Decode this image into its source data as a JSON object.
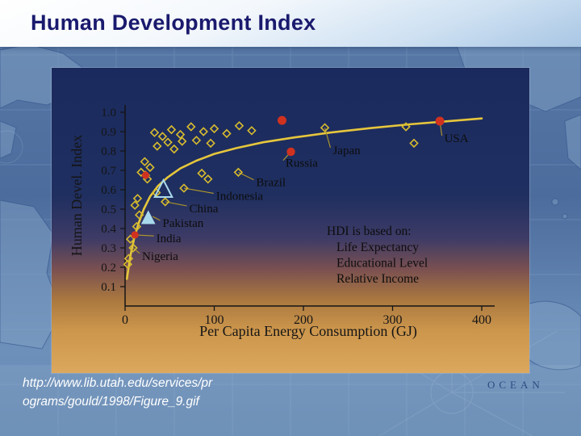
{
  "slide": {
    "title": "Human Development Index",
    "source_lines": [
      "http://www.lib.utah.edu/services/pr",
      "ograms/gould/1998/Figure_9.gif"
    ],
    "map_label": "OCEAN"
  },
  "chart_data": {
    "type": "scatter",
    "xlabel": "Per Capita Energy Consumption (GJ)",
    "ylabel": "Human Devel. Index",
    "xlim": [
      0,
      415
    ],
    "ylim": [
      0,
      1.0
    ],
    "x_ticks": [
      0,
      100,
      200,
      300,
      400
    ],
    "y_ticks": [
      0.1,
      0.2,
      0.3,
      0.4,
      0.5,
      0.6,
      0.7,
      0.8,
      0.9,
      1.0
    ],
    "grid": false,
    "legend": "none",
    "annotation": {
      "title": "HDI is based on:",
      "items": [
        "Life Expectancy",
        "Educational Level",
        "Relative Income"
      ]
    },
    "labeled_points": [
      {
        "label": "USA",
        "point": [
          353,
          0.954
        ],
        "label_at": [
          358,
          0.862
        ]
      },
      {
        "label": "Japan",
        "point": [
          224,
          0.92
        ],
        "label_at": [
          233,
          0.8
        ]
      },
      {
        "label": "Russia",
        "point": [
          186,
          0.796
        ],
        "label_at": [
          180,
          0.735
        ]
      },
      {
        "label": "Brazil",
        "point": [
          127,
          0.69
        ],
        "label_at": [
          147,
          0.635
        ]
      },
      {
        "label": "Indonesia",
        "point": [
          66,
          0.608
        ],
        "label_at": [
          102,
          0.565
        ]
      },
      {
        "label": "China",
        "point": [
          45,
          0.538
        ],
        "label_at": [
          72,
          0.5
        ]
      },
      {
        "label": "Pakistan",
        "point": [
          31,
          0.462
        ],
        "label_at": [
          42,
          0.425
        ]
      },
      {
        "label": "India",
        "point": [
          11,
          0.367
        ],
        "label_at": [
          35,
          0.345
        ]
      },
      {
        "label": "Nigeria",
        "point": [
          9,
          0.3
        ],
        "label_at": [
          19,
          0.255
        ]
      }
    ],
    "diamond_points": [
      [
        33,
        0.895
      ],
      [
        42,
        0.875
      ],
      [
        52,
        0.91
      ],
      [
        62,
        0.885
      ],
      [
        74,
        0.925
      ],
      [
        88,
        0.9
      ],
      [
        100,
        0.915
      ],
      [
        114,
        0.89
      ],
      [
        128,
        0.93
      ],
      [
        142,
        0.905
      ],
      [
        48,
        0.845
      ],
      [
        64,
        0.85
      ],
      [
        80,
        0.855
      ],
      [
        96,
        0.84
      ],
      [
        36,
        0.825
      ],
      [
        55,
        0.81
      ],
      [
        224,
        0.92
      ],
      [
        324,
        0.84
      ],
      [
        315,
        0.925
      ],
      [
        22,
        0.745
      ],
      [
        28,
        0.715
      ],
      [
        18,
        0.69
      ],
      [
        25,
        0.655
      ],
      [
        86,
        0.685
      ],
      [
        93,
        0.655
      ],
      [
        66,
        0.608
      ],
      [
        45,
        0.538
      ],
      [
        35,
        0.585
      ],
      [
        127,
        0.69
      ],
      [
        23,
        0.675
      ],
      [
        9,
        0.3
      ],
      [
        6,
        0.345
      ],
      [
        13,
        0.41
      ],
      [
        4,
        0.245
      ],
      [
        16,
        0.47
      ],
      [
        11,
        0.52
      ],
      [
        3,
        0.215
      ],
      [
        14,
        0.555
      ]
    ],
    "red_points": [
      [
        176,
        0.958,
        5.5
      ],
      [
        353,
        0.954,
        5.5
      ],
      [
        186,
        0.796,
        5.2
      ],
      [
        23,
        0.675,
        4.6
      ],
      [
        11,
        0.367,
        4.6
      ]
    ],
    "triangle_points": [
      {
        "pos": [
          43,
          0.6
        ],
        "size": 12,
        "filled": false
      },
      {
        "pos": [
          26,
          0.452
        ],
        "size": 8,
        "filled": true
      }
    ],
    "trend_curve": [
      [
        2,
        0.14
      ],
      [
        6,
        0.26
      ],
      [
        10,
        0.345
      ],
      [
        15,
        0.425
      ],
      [
        21,
        0.5
      ],
      [
        28,
        0.565
      ],
      [
        37,
        0.62
      ],
      [
        48,
        0.665
      ],
      [
        62,
        0.71
      ],
      [
        80,
        0.75
      ],
      [
        100,
        0.785
      ],
      [
        125,
        0.815
      ],
      [
        155,
        0.845
      ],
      [
        190,
        0.87
      ],
      [
        230,
        0.895
      ],
      [
        275,
        0.918
      ],
      [
        320,
        0.938
      ],
      [
        360,
        0.953
      ],
      [
        400,
        0.968
      ]
    ],
    "colors": {
      "curve": "#e6c63c",
      "diamond": "#d8bc2e",
      "red_dot": "#d03220",
      "triangle": "#a9d9ec",
      "axis": "#151515",
      "leader": "#b49a28",
      "text": "#151515",
      "bg_top": "#1b2a5e",
      "bg_bottom": "#d9a75c"
    }
  }
}
